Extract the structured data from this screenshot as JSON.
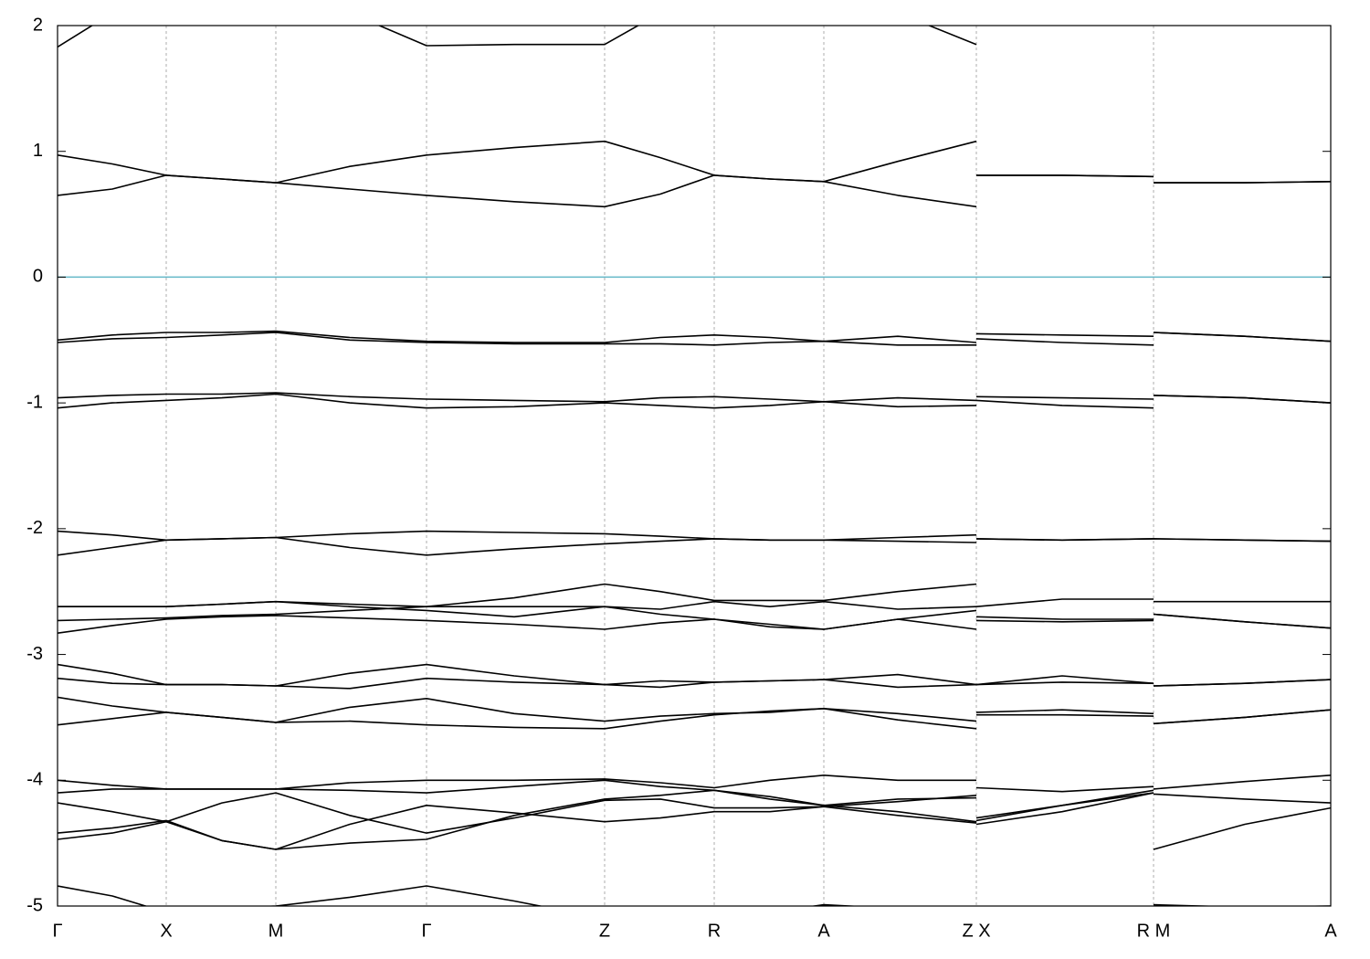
{
  "chart_data": {
    "type": "line",
    "x": [
      0,
      0.6,
      1.19,
      1.8,
      2.39,
      3.2,
      4.04,
      5.0,
      5.99,
      6.6,
      7.19,
      7.8,
      8.39,
      9.2,
      10.06,
      10.06,
      10.06,
      11.0,
      12.0,
      12.0,
      12.0,
      13.0,
      13.94
    ],
    "xlim": [
      0,
      13.94
    ],
    "xticks": [
      {
        "value": 0,
        "label": "Γ"
      },
      {
        "value": 1.19,
        "label": "X"
      },
      {
        "value": 2.39,
        "label": "M"
      },
      {
        "value": 4.04,
        "label": "Γ"
      },
      {
        "value": 5.99,
        "label": "Z"
      },
      {
        "value": 7.19,
        "label": "R"
      },
      {
        "value": 8.39,
        "label": "A"
      },
      {
        "value": 10.06,
        "label": "Z X"
      },
      {
        "value": 12.0,
        "label": "R M"
      },
      {
        "value": 13.94,
        "label": "A"
      }
    ],
    "ylim": [
      -5,
      2
    ],
    "yticks": [
      2,
      1,
      0,
      -1,
      -2,
      -3,
      -4,
      -5
    ],
    "grid": true,
    "reference_line": {
      "value": 0,
      "color": "#63b8c8"
    },
    "series": [
      {
        "color": "#000000",
        "values": [
          1.83,
          2.1,
          2.5,
          2.5,
          2.5,
          2.1,
          1.84,
          1.85,
          1.85,
          2.1,
          2.4,
          2.3,
          2.3,
          2.1,
          1.85,
          null,
          null,
          null,
          null,
          null,
          null,
          null,
          null
        ]
      },
      {
        "color": "#000000",
        "values": [
          0.97,
          0.9,
          0.81,
          0.78,
          0.75,
          0.88,
          0.97,
          1.03,
          1.08,
          0.95,
          0.81,
          0.78,
          0.76,
          0.92,
          1.08,
          null,
          0.81,
          0.81,
          0.8,
          null,
          0.75,
          0.75,
          0.76
        ]
      },
      {
        "color": "#000000",
        "values": [
          0.65,
          0.7,
          0.81,
          0.78,
          0.75,
          0.7,
          0.65,
          0.6,
          0.56,
          0.66,
          0.81,
          0.78,
          0.76,
          0.65,
          0.56,
          null,
          0.81,
          0.81,
          0.8,
          null,
          0.75,
          0.75,
          0.76
        ]
      },
      {
        "color": "#000000",
        "values": [
          -0.5,
          -0.46,
          -0.44,
          -0.44,
          -0.43,
          -0.48,
          -0.51,
          -0.52,
          -0.52,
          -0.48,
          -0.46,
          -0.48,
          -0.51,
          -0.47,
          -0.52,
          null,
          -0.45,
          -0.46,
          -0.47,
          null,
          -0.44,
          -0.47,
          -0.51
        ]
      },
      {
        "color": "#000000",
        "values": [
          -0.52,
          -0.49,
          -0.48,
          -0.46,
          -0.44,
          -0.5,
          -0.52,
          -0.53,
          -0.53,
          -0.53,
          -0.54,
          -0.52,
          -0.51,
          -0.54,
          -0.54,
          null,
          -0.49,
          -0.52,
          -0.54,
          null,
          -0.44,
          -0.47,
          -0.51
        ]
      },
      {
        "color": "#000000",
        "values": [
          -0.96,
          -0.94,
          -0.93,
          -0.93,
          -0.92,
          -0.95,
          -0.97,
          -0.98,
          -0.99,
          -0.96,
          -0.95,
          -0.97,
          -0.99,
          -0.96,
          -0.98,
          null,
          -0.95,
          -0.96,
          -0.97,
          null,
          -0.94,
          -0.96,
          -1.0
        ]
      },
      {
        "color": "#000000",
        "values": [
          -1.04,
          -1.0,
          -0.98,
          -0.96,
          -0.93,
          -1.0,
          -1.04,
          -1.03,
          -1.0,
          -1.02,
          -1.04,
          -1.02,
          -0.99,
          -1.03,
          -1.02,
          null,
          -0.98,
          -1.02,
          -1.04,
          null,
          -0.94,
          -0.96,
          -1.0
        ]
      },
      {
        "color": "#000000",
        "values": [
          -2.02,
          -2.05,
          -2.09,
          -2.08,
          -2.07,
          -2.04,
          -2.02,
          -2.03,
          -2.04,
          -2.06,
          -2.08,
          -2.09,
          -2.09,
          -2.07,
          -2.05,
          null,
          -2.08,
          -2.09,
          -2.08,
          null,
          -2.08,
          -2.09,
          -2.1
        ]
      },
      {
        "color": "#000000",
        "values": [
          -2.21,
          -2.15,
          -2.09,
          -2.08,
          -2.07,
          -2.15,
          -2.21,
          -2.16,
          -2.12,
          -2.1,
          -2.08,
          -2.09,
          -2.09,
          -2.1,
          -2.11,
          null,
          -2.08,
          -2.09,
          -2.08,
          null,
          -2.08,
          -2.09,
          -2.1
        ]
      },
      {
        "color": "#000000",
        "values": [
          -2.62,
          -2.62,
          -2.62,
          -2.6,
          -2.58,
          -2.6,
          -2.62,
          -2.55,
          -2.44,
          -2.5,
          -2.57,
          -2.57,
          -2.57,
          -2.5,
          -2.44,
          null,
          -2.62,
          -2.56,
          -2.56,
          null,
          -2.58,
          -2.58,
          -2.58
        ]
      },
      {
        "color": "#000000",
        "values": [
          -2.73,
          -2.72,
          -2.71,
          -2.69,
          -2.68,
          -2.65,
          -2.62,
          -2.62,
          -2.62,
          -2.64,
          -2.58,
          -2.62,
          -2.58,
          -2.64,
          -2.62,
          null,
          -2.7,
          -2.72,
          -2.72,
          null,
          -2.68,
          -2.74,
          -2.79
        ]
      },
      {
        "color": "#000000",
        "values": [
          -2.83,
          -2.77,
          -2.72,
          -2.7,
          -2.69,
          -2.71,
          -2.73,
          -2.76,
          -2.8,
          -2.75,
          -2.72,
          -2.76,
          -2.8,
          -2.72,
          -2.65,
          null,
          -2.73,
          -2.74,
          -2.73,
          null,
          -2.68,
          -2.74,
          -2.79
        ]
      },
      {
        "color": "#000000",
        "values": [
          -2.62,
          -2.62,
          -2.62,
          -2.6,
          -2.58,
          -2.62,
          -2.65,
          -2.7,
          -2.62,
          -2.68,
          -2.72,
          -2.78,
          -2.8,
          -2.72,
          -2.8,
          null,
          null,
          null,
          null,
          null,
          null,
          null,
          null
        ]
      },
      {
        "color": "#000000",
        "values": [
          -3.08,
          -3.15,
          -3.24,
          -3.24,
          -3.25,
          -3.15,
          -3.08,
          -3.17,
          -3.24,
          -3.21,
          -3.22,
          -3.21,
          -3.2,
          -3.16,
          -3.24,
          null,
          -3.24,
          -3.17,
          -3.23,
          null,
          -3.25,
          -3.23,
          -3.2
        ]
      },
      {
        "color": "#000000",
        "values": [
          -3.19,
          -3.23,
          -3.24,
          -3.24,
          -3.25,
          -3.27,
          -3.19,
          -3.22,
          -3.24,
          -3.26,
          -3.22,
          -3.21,
          -3.2,
          -3.26,
          -3.24,
          null,
          -3.24,
          -3.22,
          -3.23,
          null,
          -3.25,
          -3.23,
          -3.2
        ]
      },
      {
        "color": "#000000",
        "values": [
          -3.34,
          -3.41,
          -3.46,
          -3.5,
          -3.54,
          -3.42,
          -3.35,
          -3.47,
          -3.53,
          -3.49,
          -3.47,
          -3.46,
          -3.43,
          -3.47,
          -3.53,
          null,
          -3.46,
          -3.44,
          -3.47,
          null,
          -3.55,
          -3.5,
          -3.44
        ]
      },
      {
        "color": "#000000",
        "values": [
          -3.56,
          -3.51,
          -3.46,
          -3.5,
          -3.54,
          -3.53,
          -3.56,
          -3.58,
          -3.59,
          -3.53,
          -3.48,
          -3.45,
          -3.43,
          -3.52,
          -3.59,
          null,
          -3.48,
          -3.48,
          -3.49,
          null,
          -3.55,
          -3.5,
          -3.44
        ]
      },
      {
        "color": "#000000",
        "values": [
          -4.0,
          -4.04,
          -4.07,
          -4.07,
          -4.07,
          -4.02,
          -4.0,
          -4.0,
          -3.99,
          -4.02,
          -4.06,
          -4.0,
          -3.96,
          -4.0,
          -4.0,
          null,
          -4.06,
          -4.09,
          -4.05,
          null,
          -4.07,
          -4.01,
          -3.96
        ]
      },
      {
        "color": "#000000",
        "values": [
          -4.1,
          -4.07,
          -4.07,
          -4.07,
          -4.07,
          -4.08,
          -4.1,
          -4.05,
          -4.0,
          -4.05,
          -4.08,
          -4.15,
          -4.2,
          -4.25,
          -4.33,
          null,
          -4.3,
          -4.2,
          -4.1,
          null,
          -4.11,
          -4.15,
          -4.18
        ]
      },
      {
        "color": "#000000",
        "values": [
          -4.18,
          -4.25,
          -4.33,
          -4.18,
          -4.1,
          -4.28,
          -4.42,
          -4.3,
          -4.16,
          -4.15,
          -4.22,
          -4.22,
          -4.21,
          -4.17,
          -4.12,
          null,
          -4.32,
          -4.2,
          -4.08,
          null,
          -4.55,
          -4.35,
          -4.22
        ]
      },
      {
        "color": "#000000",
        "values": [
          -4.42,
          -4.38,
          -4.32,
          -4.48,
          -4.55,
          -4.35,
          -4.2,
          -4.26,
          -4.33,
          -4.3,
          -4.25,
          -4.25,
          -4.21,
          -4.28,
          -4.34,
          null,
          -4.35,
          -4.25,
          -4.1,
          null,
          null,
          null,
          null
        ]
      },
      {
        "color": "#000000",
        "values": [
          -4.47,
          -4.42,
          -4.33,
          -4.48,
          -4.55,
          -4.5,
          -4.47,
          -4.28,
          -4.15,
          -4.12,
          -4.08,
          -4.13,
          -4.2,
          -4.15,
          -4.14,
          null,
          null,
          null,
          null,
          null,
          null,
          null,
          null
        ]
      },
      {
        "color": "#000000",
        "values": [
          -4.84,
          -4.92,
          -5.05,
          -5.02,
          -5.0,
          -4.93,
          -4.84,
          -4.96,
          -5.1,
          -5.1,
          -5.1,
          -5.05,
          -4.99,
          -5.02,
          -5.1,
          null,
          -5.1,
          -5.1,
          -5.1,
          null,
          -4.99,
          -5.01,
          -5.0
        ]
      }
    ]
  }
}
